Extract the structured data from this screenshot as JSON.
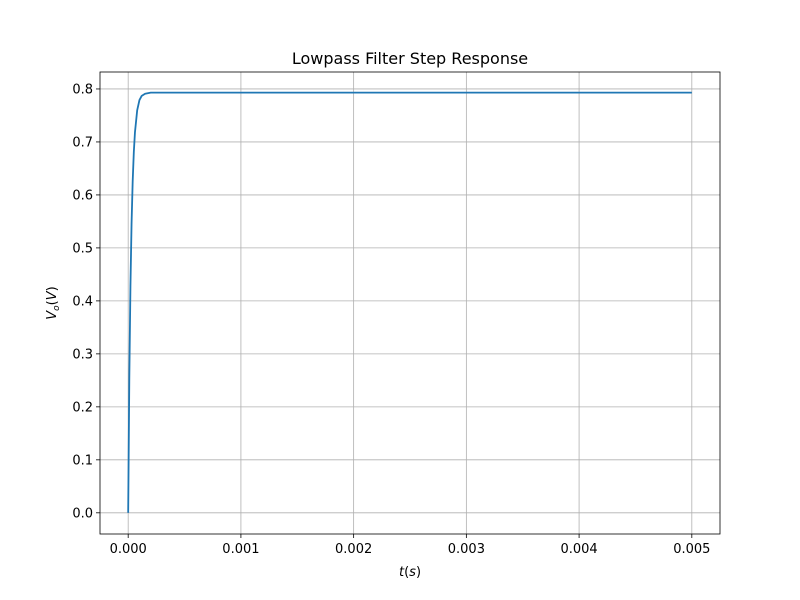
{
  "chart_data": {
    "type": "line",
    "title": "Lowpass Filter Step Response",
    "xlabel": {
      "var": "t",
      "unit": "s"
    },
    "ylabel": {
      "var": "V",
      "sub": "o",
      "unit": "V"
    },
    "xlim": [
      -0.00025,
      0.00525
    ],
    "ylim": [
      -0.04,
      0.832
    ],
    "xticks": [
      0.0,
      0.001,
      0.002,
      0.003,
      0.004,
      0.005
    ],
    "xtick_labels": [
      "0.000",
      "0.001",
      "0.002",
      "0.003",
      "0.004",
      "0.005"
    ],
    "yticks": [
      0.0,
      0.1,
      0.2,
      0.3,
      0.4,
      0.5,
      0.6,
      0.7,
      0.8
    ],
    "ytick_labels": [
      "0.0",
      "0.1",
      "0.2",
      "0.3",
      "0.4",
      "0.5",
      "0.6",
      "0.7",
      "0.8"
    ],
    "grid": true,
    "legend": "none",
    "series": [
      {
        "color": "#1f77b4",
        "x": [
          0.0,
          1e-05,
          2e-05,
          3e-05,
          4e-05,
          5e-05,
          6e-05,
          8e-05,
          0.0001,
          0.00012,
          0.00015,
          0.0002,
          0.0003,
          0.0005,
          0.001,
          0.002,
          0.003,
          0.004,
          0.005
        ],
        "y": [
          0.0,
          0.255,
          0.428,
          0.546,
          0.626,
          0.681,
          0.718,
          0.76,
          0.779,
          0.787,
          0.791,
          0.793,
          0.793,
          0.793,
          0.793,
          0.793,
          0.793,
          0.793,
          0.793
        ]
      }
    ]
  }
}
